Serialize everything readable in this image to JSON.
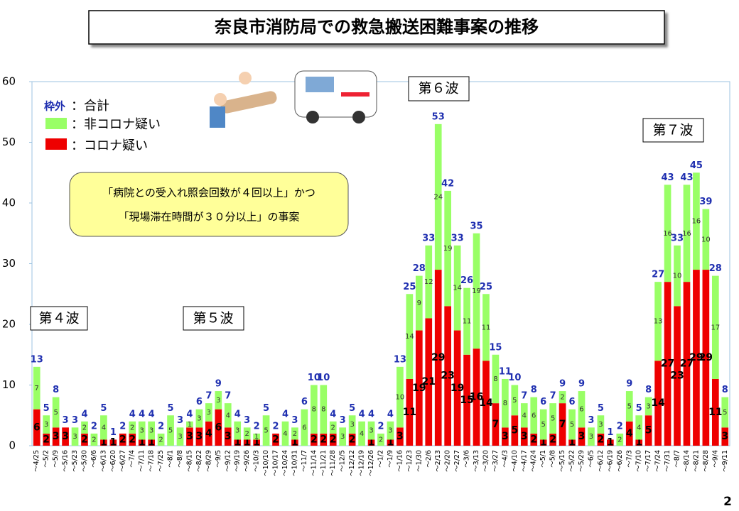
{
  "chart_data": {
    "type": "stacked_bar",
    "title": "奈良市消防局での救急搬送困難事案の推移",
    "page_number": "2",
    "categories": [
      "～4/25",
      "～5/2",
      "～5/9",
      "～5/16",
      "～5/23",
      "～5/30",
      "～6/6",
      "～6/13",
      "～6/20",
      "～6/27",
      "～7/4",
      "～7/11",
      "～7/18",
      "～7/25",
      "～8/1",
      "～8/8",
      "～8/15",
      "～8/22",
      "～8/29",
      "～9/5",
      "～9/12",
      "～9/19",
      "～9/26",
      "～10/3",
      "～10/10",
      "～10/17",
      "～10/24",
      "～10/31",
      "～11/7",
      "～11/14",
      "～11/21",
      "～11/28",
      "～12/5",
      "～12/12",
      "～12/19",
      "～12/26",
      "～1/2",
      "～1/9",
      "～1/16",
      "～1/23",
      "～1/30",
      "～2/6",
      "～2/13",
      "～2/20",
      "～2/27",
      "～3/6",
      "～3/13",
      "～3/20",
      "～3/27",
      "～4/3",
      "～4/10",
      "～4/17",
      "～4/24",
      "～5/1",
      "～5/8",
      "～5/15",
      "～5/22",
      "～5/29",
      "～6/5",
      "～6/12",
      "～6/19",
      "～6/26",
      "～7/3",
      "～7/10",
      "～7/17",
      "～7/24",
      "～7/31",
      "～8/7",
      "～8/14",
      "～8/21",
      "～8/28",
      "～9/4",
      "～9/11"
    ],
    "series": [
      {
        "name": "：コロナ疑い",
        "color": "#ee0000",
        "values": [
          6,
          2,
          3,
          3,
          0,
          2,
          0,
          1,
          1,
          2,
          2,
          1,
          1,
          0,
          0,
          0,
          3,
          3,
          4,
          6,
          3,
          1,
          1,
          1,
          0,
          2,
          0,
          1,
          0,
          2,
          2,
          2,
          0,
          2,
          0,
          1,
          0,
          1,
          3,
          11,
          19,
          21,
          29,
          23,
          19,
          15,
          16,
          14,
          7,
          3,
          5,
          3,
          2,
          1,
          2,
          7,
          1,
          3,
          0,
          2,
          1,
          0,
          4,
          1,
          5,
          14,
          27,
          23,
          27,
          29,
          29,
          11,
          3
        ]
      },
      {
        "name": "：非コロナ疑い",
        "color": "#99ff66",
        "values": [
          7,
          3,
          5,
          0,
          3,
          2,
          2,
          4,
          0,
          0,
          2,
          3,
          3,
          2,
          5,
          3,
          1,
          3,
          3,
          3,
          4,
          3,
          2,
          1,
          5,
          0,
          4,
          2,
          6,
          8,
          8,
          2,
          3,
          3,
          4,
          3,
          2,
          3,
          10,
          14,
          9,
          12,
          24,
          19,
          14,
          11,
          19,
          11,
          8,
          8,
          5,
          4,
          6,
          5,
          5,
          2,
          5,
          6,
          3,
          3,
          0,
          2,
          5,
          4,
          3,
          13,
          16,
          10,
          16,
          16,
          10,
          17,
          5
        ]
      }
    ],
    "totals": [
      13,
      5,
      8,
      3,
      3,
      4,
      2,
      5,
      1,
      2,
      4,
      4,
      4,
      2,
      5,
      3,
      4,
      6,
      7,
      9,
      7,
      4,
      3,
      2,
      5,
      2,
      4,
      3,
      6,
      10,
      10,
      4,
      3,
      5,
      4,
      4,
      2,
      4,
      13,
      25,
      28,
      33,
      53,
      42,
      33,
      26,
      35,
      25,
      15,
      11,
      10,
      7,
      8,
      6,
      7,
      9,
      6,
      9,
      3,
      5,
      1,
      2,
      9,
      5,
      8,
      27,
      43,
      33,
      43,
      45,
      39,
      28,
      8
    ],
    "totals_legend": {
      "key": "枠外",
      "label": "：合計"
    },
    "note": [
      "「病院との受入れ照会回数が４回以上」かつ",
      "「現場滞在時間が３０分以上」の事案"
    ],
    "annotations": [
      "第４波",
      "第５波",
      "第６波",
      "第７波"
    ],
    "ylim": [
      0,
      60
    ],
    "yticks": [
      0,
      10,
      20,
      30,
      40,
      50,
      60
    ],
    "grid": false
  }
}
